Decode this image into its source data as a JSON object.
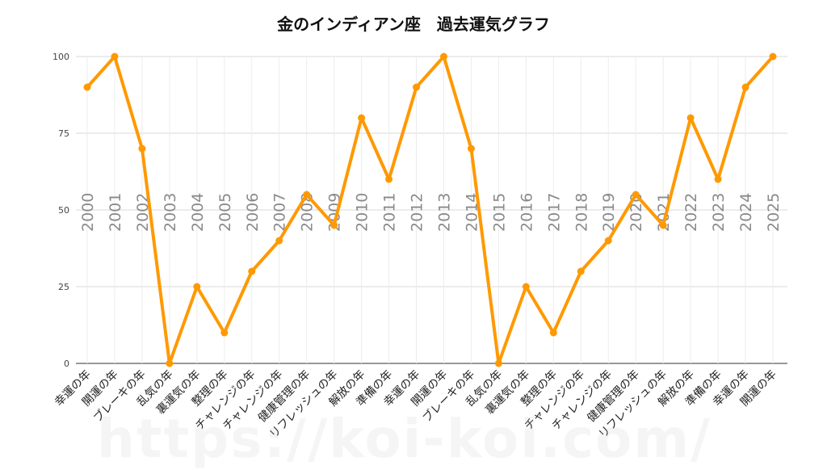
{
  "title": "金のインディアン座　過去運気グラフ",
  "watermark": "https://koi-koi.com/",
  "chart_data": {
    "type": "line",
    "title": "金のインディアン座　過去運気グラフ",
    "xlabel": "",
    "ylabel": "",
    "ylim": [
      0,
      100
    ],
    "yticks": [
      0,
      25,
      50,
      75,
      100
    ],
    "grid": true,
    "line_color": "#ff9900",
    "categories": [
      "幸運の年",
      "開運の年",
      "ブレーキの年",
      "乱気の年",
      "裏運気の年",
      "整理の年",
      "チャレンジの年",
      "チャレンジの年",
      "健康管理の年",
      "リフレッシュの年",
      "解放の年",
      "準備の年",
      "幸運の年",
      "開運の年",
      "ブレーキの年",
      "乱気の年",
      "裏運気の年",
      "整理の年",
      "チャレンジの年",
      "チャレンジの年",
      "健康管理の年",
      "リフレッシュの年",
      "解放の年",
      "準備の年",
      "幸運の年",
      "開運の年"
    ],
    "years": [
      "2000",
      "2001",
      "2002",
      "2003",
      "2004",
      "2005",
      "2006",
      "2007",
      "2008",
      "2009",
      "2010",
      "2011",
      "2012",
      "2013",
      "2014",
      "2015",
      "2016",
      "2017",
      "2018",
      "2019",
      "2020",
      "2021",
      "2022",
      "2023",
      "2024",
      "2025"
    ],
    "values": [
      90,
      100,
      70,
      0,
      25,
      10,
      30,
      40,
      55,
      45,
      80,
      60,
      90,
      100,
      70,
      0,
      25,
      10,
      30,
      40,
      55,
      45,
      80,
      60,
      90,
      100
    ]
  }
}
